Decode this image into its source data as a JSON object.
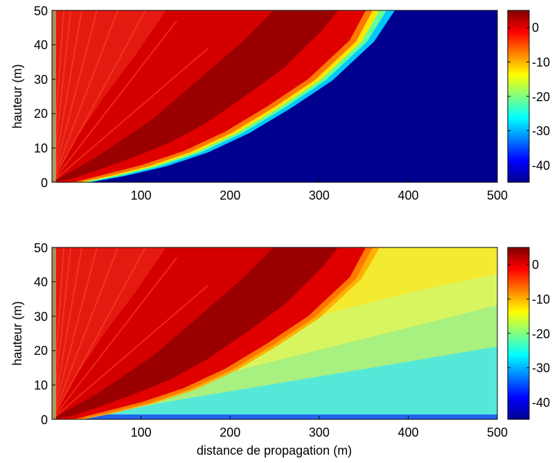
{
  "chart_data": [
    {
      "type": "heatmap",
      "panel": "top",
      "title": "",
      "xlabel": "",
      "ylabel": "hauteur (m)",
      "xlim": [
        0,
        500
      ],
      "ylim": [
        0,
        50
      ],
      "x_ticks": [
        100,
        200,
        300,
        400,
        500
      ],
      "y_ticks": [
        0,
        10,
        20,
        30,
        40,
        50
      ],
      "colorbar": {
        "clim": [
          -45,
          5
        ],
        "ticks": [
          0,
          -10,
          -20,
          -30,
          -40
        ],
        "colormap": "jet"
      },
      "field": {
        "shadow_boundary": [
          [
            0,
            0
          ],
          [
            50,
            1.5
          ],
          [
            100,
            5
          ],
          [
            150,
            10
          ],
          [
            200,
            17
          ],
          [
            250,
            25
          ],
          [
            300,
            33
          ],
          [
            350,
            41
          ],
          [
            400,
            48.5
          ],
          [
            425,
            50
          ]
        ],
        "lit_region_level_db": [
          -5,
          0
        ],
        "shadow_region_level_db": -45
      }
    },
    {
      "type": "heatmap",
      "panel": "bottom",
      "title": "",
      "xlabel": "distance de propagation (m)",
      "ylabel": "hauteur (m)",
      "xlim": [
        0,
        500
      ],
      "ylim": [
        0,
        50
      ],
      "x_ticks": [
        100,
        200,
        300,
        400,
        500
      ],
      "y_ticks": [
        0,
        10,
        20,
        30,
        40,
        50
      ],
      "colorbar": {
        "clim": [
          -45,
          5
        ],
        "ticks": [
          0,
          -10,
          -20,
          -30,
          -40
        ],
        "colormap": "jet"
      },
      "field": {
        "shadow_boundary": [
          [
            0,
            0
          ],
          [
            50,
            1.5
          ],
          [
            100,
            5
          ],
          [
            150,
            10
          ],
          [
            200,
            17
          ],
          [
            250,
            25
          ],
          [
            300,
            33
          ],
          [
            350,
            41
          ],
          [
            400,
            48.5
          ],
          [
            425,
            50
          ]
        ],
        "lit_region_level_db": [
          -5,
          0
        ],
        "shadow_region_level_db": [
          -30,
          -18
        ]
      }
    }
  ]
}
